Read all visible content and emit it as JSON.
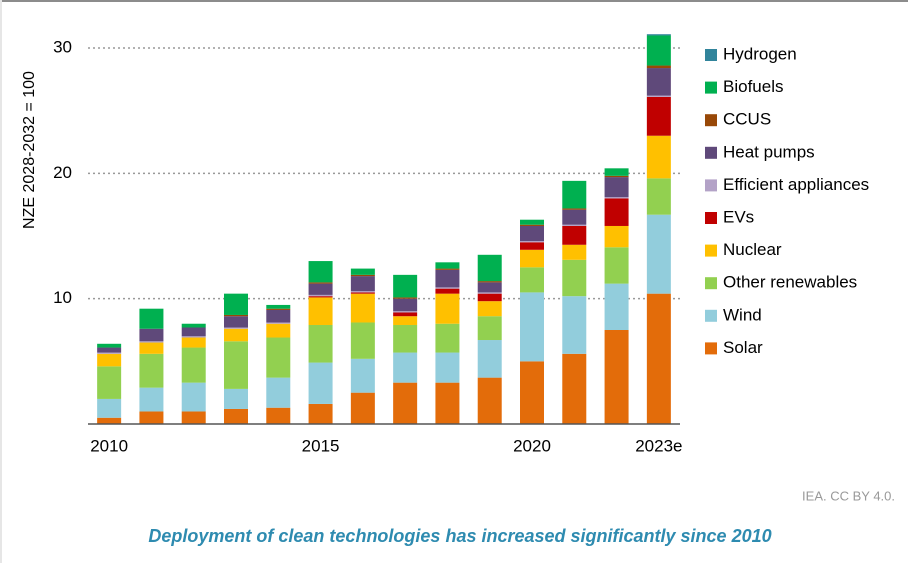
{
  "chart_data": {
    "type": "bar",
    "stacked": true,
    "y_axis_label": "NZE 2028-2032 = 100",
    "categories": [
      "2010",
      null,
      null,
      null,
      null,
      "2015",
      null,
      null,
      null,
      null,
      "2020",
      null,
      null,
      "2023e"
    ],
    "series": [
      {
        "name": "Solar",
        "color": "#e36c0a",
        "values": [
          0.5,
          1.0,
          1.0,
          1.2,
          1.3,
          1.6,
          2.5,
          3.3,
          3.3,
          3.7,
          5.0,
          5.6,
          7.5,
          10.4
        ]
      },
      {
        "name": "Wind",
        "color": "#92cddc",
        "values": [
          1.5,
          1.9,
          2.3,
          1.6,
          2.4,
          3.3,
          2.7,
          2.4,
          2.4,
          3.0,
          5.5,
          4.6,
          3.7,
          6.3
        ]
      },
      {
        "name": "Other renewables",
        "color": "#92d050",
        "values": [
          2.6,
          2.7,
          2.8,
          3.8,
          3.2,
          3.0,
          2.9,
          2.2,
          2.3,
          1.9,
          2.0,
          2.9,
          2.9,
          2.9
        ]
      },
      {
        "name": "Nuclear",
        "color": "#ffc000",
        "values": [
          1.0,
          0.9,
          0.8,
          1.0,
          1.1,
          2.2,
          2.3,
          0.7,
          2.4,
          1.2,
          1.4,
          1.2,
          1.7,
          3.4
        ]
      },
      {
        "name": "EVs",
        "color": "#c00000",
        "values": [
          0,
          0,
          0,
          0,
          0,
          0.1,
          0.1,
          0.3,
          0.4,
          0.6,
          0.6,
          1.5,
          2.2,
          3.1
        ]
      },
      {
        "name": "Efficient appliances",
        "color": "#b3a2c7",
        "values": [
          0.1,
          0.1,
          0.1,
          0.1,
          0.1,
          0.1,
          0.1,
          0.1,
          0.1,
          0.1,
          0.1,
          0.1,
          0.1,
          0.1
        ]
      },
      {
        "name": "Heat pumps",
        "color": "#5f497a",
        "values": [
          0.4,
          1.0,
          0.7,
          0.9,
          1.0,
          0.9,
          1.2,
          1.0,
          1.4,
          0.8,
          1.2,
          1.2,
          1.6,
          2.2
        ]
      },
      {
        "name": "CCUS",
        "color": "#984807",
        "values": [
          0,
          0,
          0,
          0.1,
          0.1,
          0.1,
          0.1,
          0.1,
          0.1,
          0.1,
          0.1,
          0.1,
          0.1,
          0.2
        ]
      },
      {
        "name": "Biofuels",
        "color": "#00b050",
        "values": [
          0.3,
          1.6,
          0.3,
          1.7,
          0.3,
          1.7,
          0.5,
          1.8,
          0.5,
          2.1,
          0.4,
          2.2,
          0.6,
          2.4
        ]
      },
      {
        "name": "Hydrogen",
        "color": "#31849b",
        "values": [
          0,
          0,
          0,
          0,
          0,
          0,
          0,
          0,
          0,
          0,
          0,
          0,
          0,
          0.1
        ]
      }
    ],
    "ylim": [
      0,
      30
    ],
    "yticks": [
      10,
      20,
      30
    ],
    "grid": true,
    "legend": "right",
    "source": "IEA. CC BY 4.0.",
    "caption": "Deployment of clean technologies has increased significantly since 2010"
  }
}
